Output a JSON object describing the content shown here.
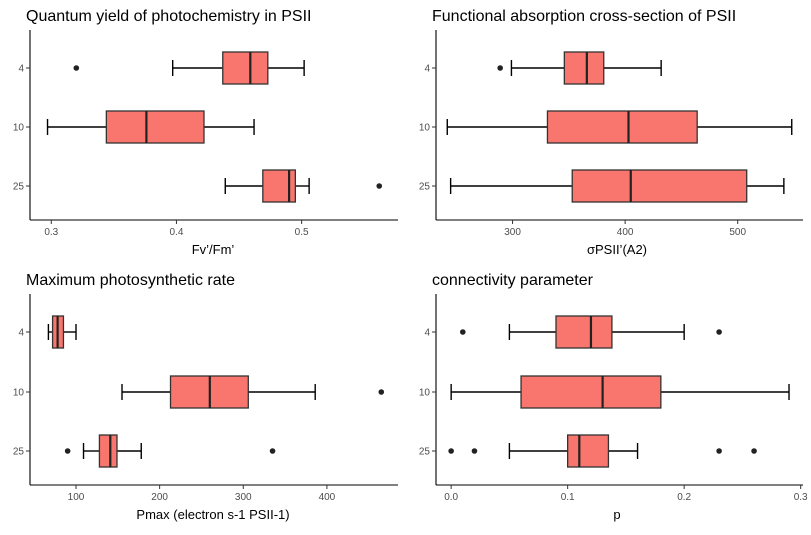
{
  "colors": {
    "box_fill": "#F8766D",
    "stroke": "#333333",
    "background": "#ffffff"
  },
  "chart_data": [
    {
      "type": "boxplot",
      "orientation": "horizontal",
      "title": "Quantum yield of photochemistry in PSII",
      "xlabel": "Fv’/Fm’",
      "ylabel": "",
      "xlim": [
        0.283,
        0.577
      ],
      "xticks": [
        0.3,
        0.4,
        0.5
      ],
      "xtick_labels": [
        "0.3",
        "0.4",
        "0.5"
      ],
      "categories": [
        "4",
        "10",
        "25"
      ],
      "boxes": [
        {
          "category": "4",
          "whisker_low": 0.397,
          "q1": 0.437,
          "median": 0.459,
          "q3": 0.473,
          "whisker_high": 0.502,
          "outliers": [
            0.32
          ]
        },
        {
          "category": "10",
          "whisker_low": 0.297,
          "q1": 0.344,
          "median": 0.376,
          "q3": 0.422,
          "whisker_high": 0.462,
          "outliers": []
        },
        {
          "category": "25",
          "whisker_low": 0.439,
          "q1": 0.469,
          "median": 0.49,
          "q3": 0.495,
          "whisker_high": 0.506,
          "outliers": [
            0.562
          ]
        }
      ],
      "grid": false
    },
    {
      "type": "boxplot",
      "orientation": "horizontal",
      "title": "Functional absorption cross-section of PSII",
      "xlabel": "σPSII’(A2)",
      "ylabel": "",
      "xlim": [
        232,
        558
      ],
      "xticks": [
        300,
        400,
        500
      ],
      "xtick_labels": [
        "300",
        "400",
        "500"
      ],
      "categories": [
        "4",
        "10",
        "25"
      ],
      "boxes": [
        {
          "category": "4",
          "whisker_low": 299,
          "q1": 346,
          "median": 366,
          "q3": 381,
          "whisker_high": 432,
          "outliers": [
            289
          ]
        },
        {
          "category": "10",
          "whisker_low": 242,
          "q1": 331,
          "median": 403,
          "q3": 464,
          "whisker_high": 548,
          "outliers": []
        },
        {
          "category": "25",
          "whisker_low": 245,
          "q1": 353,
          "median": 405,
          "q3": 508,
          "whisker_high": 541,
          "outliers": []
        }
      ],
      "grid": false
    },
    {
      "type": "boxplot",
      "orientation": "horizontal",
      "title": "Maximum photosynthetic rate",
      "xlabel": "Pmax (electron s-1 PSII-1)",
      "ylabel": "",
      "xlim": [
        45,
        485
      ],
      "xticks": [
        100,
        200,
        300,
        400
      ],
      "xtick_labels": [
        "100",
        "200",
        "300",
        "400"
      ],
      "categories": [
        "4",
        "10",
        "25"
      ],
      "boxes": [
        {
          "category": "4",
          "whisker_low": 67,
          "q1": 72,
          "median": 78,
          "q3": 85,
          "whisker_high": 100,
          "outliers": []
        },
        {
          "category": "10",
          "whisker_low": 155,
          "q1": 213,
          "median": 260,
          "q3": 306,
          "whisker_high": 386,
          "outliers": [
            465
          ]
        },
        {
          "category": "25",
          "whisker_low": 109,
          "q1": 128,
          "median": 141,
          "q3": 149,
          "whisker_high": 178,
          "outliers": [
            90,
            335
          ]
        }
      ],
      "grid": false
    },
    {
      "type": "boxplot",
      "orientation": "horizontal",
      "title": "connectivity parameter",
      "xlabel": "p",
      "ylabel": "",
      "xlim": [
        -0.013,
        0.302
      ],
      "xticks": [
        0.0,
        0.1,
        0.2,
        0.3
      ],
      "xtick_labels": [
        "0.0",
        "0.1",
        "0.2",
        "0.3"
      ],
      "categories": [
        "4",
        "10",
        "25"
      ],
      "boxes": [
        {
          "category": "4",
          "whisker_low": 0.05,
          "q1": 0.09,
          "median": 0.12,
          "q3": 0.138,
          "whisker_high": 0.2,
          "outliers": [
            0.01,
            0.23
          ]
        },
        {
          "category": "10",
          "whisker_low": 0.0,
          "q1": 0.06,
          "median": 0.13,
          "q3": 0.18,
          "whisker_high": 0.29,
          "outliers": []
        },
        {
          "category": "25",
          "whisker_low": 0.05,
          "q1": 0.1,
          "median": 0.11,
          "q3": 0.135,
          "whisker_high": 0.16,
          "outliers": [
            0.0,
            0.02,
            0.23,
            0.26
          ]
        }
      ],
      "grid": false
    }
  ]
}
